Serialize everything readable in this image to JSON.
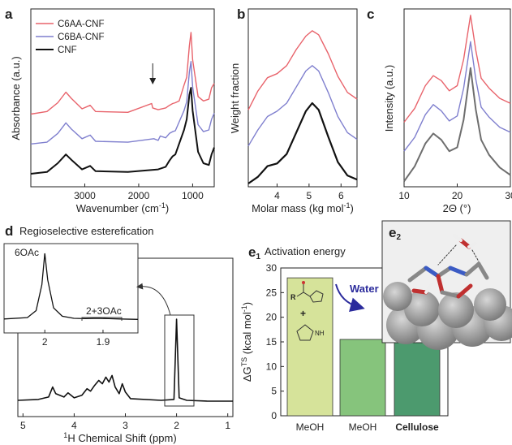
{
  "colors": {
    "red": "#e8636b",
    "blue": "#7f7fce",
    "black": "#111111",
    "gray": "#6e6e6e",
    "bar1": "#d6e39a",
    "bar2": "#86c47c",
    "bar3": "#4c9a6e",
    "arrow": "#2b2b9c"
  },
  "panels": {
    "a": {
      "letter": "a",
      "ylabel": "Absorbance (a.u.)",
      "xlabel": "Wavenumber (cm",
      "xlabel_sup": "-1",
      "xlabel_end": ")"
    },
    "b": {
      "letter": "b",
      "ylabel": "Weight fraction",
      "xlabel": "Molar mass (kg mol",
      "xlabel_sup": "-1",
      "xlabel_end": ")"
    },
    "c": {
      "letter": "c",
      "ylabel": "Intensity (a.u.)",
      "xlabel": "2Θ (°)"
    },
    "d": {
      "letter": "d",
      "title": "Regioselective esterefication",
      "xlabel_sup": "1",
      "xlabel": "H Chemical Shift (ppm)",
      "inset_label1": "6OAc",
      "inset_label2": "2+3OAc"
    },
    "e1": {
      "letter": "e",
      "sub": "1",
      "title": "Activation energy",
      "ylabel_main": "ΔG",
      "ylabel_sup": "TS",
      "ylabel_rest": " (kcal mol",
      "ylabel_sup2": "-1",
      "ylabel_end": ")",
      "water_label": "Water",
      "mol_r": "R",
      "mol_plus": "+",
      "mol_nh": "NH"
    },
    "e2": {
      "letter": "e",
      "sub": "2"
    }
  },
  "chart_data": [
    {
      "panel": "a",
      "type": "line",
      "xlabel": "Wavenumber (cm-1)",
      "ylabel": "Absorbance (a.u.)",
      "x_ticks": [
        3000,
        2000,
        1000
      ],
      "xlim": [
        4000,
        600
      ],
      "series": [
        {
          "name": "C6AA-CNF",
          "color": "#e8636b",
          "offset": 0.68,
          "points": [
            [
              4000,
              0.0
            ],
            [
              3700,
              0.03
            ],
            [
              3500,
              0.13
            ],
            [
              3350,
              0.25
            ],
            [
              3250,
              0.18
            ],
            [
              3050,
              0.06
            ],
            [
              2900,
              0.1
            ],
            [
              2800,
              0.03
            ],
            [
              2200,
              0.02
            ],
            [
              1760,
              0.12
            ],
            [
              1740,
              0.07
            ],
            [
              1640,
              0.05
            ],
            [
              1500,
              0.07
            ],
            [
              1430,
              0.1
            ],
            [
              1370,
              0.12
            ],
            [
              1320,
              0.13
            ],
            [
              1250,
              0.15
            ],
            [
              1160,
              0.33
            ],
            [
              1110,
              0.42
            ],
            [
              1060,
              0.78
            ],
            [
              1030,
              0.93
            ],
            [
              1000,
              0.62
            ],
            [
              900,
              0.2
            ],
            [
              800,
              0.15
            ],
            [
              700,
              0.17
            ],
            [
              650,
              0.3
            ],
            [
              600,
              0.35
            ]
          ]
        },
        {
          "name": "C6BA-CNF",
          "color": "#7f7fce",
          "offset": 0.34,
          "points": [
            [
              4000,
              0.0
            ],
            [
              3700,
              0.02
            ],
            [
              3500,
              0.12
            ],
            [
              3350,
              0.24
            ],
            [
              3250,
              0.17
            ],
            [
              3050,
              0.06
            ],
            [
              2900,
              0.1
            ],
            [
              2800,
              0.03
            ],
            [
              2200,
              0.02
            ],
            [
              1720,
              0.06
            ],
            [
              1640,
              0.04
            ],
            [
              1600,
              0.09
            ],
            [
              1500,
              0.07
            ],
            [
              1430,
              0.12
            ],
            [
              1370,
              0.14
            ],
            [
              1320,
              0.15
            ],
            [
              1160,
              0.38
            ],
            [
              1110,
              0.48
            ],
            [
              1060,
              0.82
            ],
            [
              1030,
              0.94
            ],
            [
              1000,
              0.65
            ],
            [
              900,
              0.22
            ],
            [
              800,
              0.14
            ],
            [
              700,
              0.16
            ],
            [
              650,
              0.28
            ],
            [
              600,
              0.35
            ]
          ]
        },
        {
          "name": "CNF",
          "color": "#111111",
          "offset": 0.0,
          "points": [
            [
              4000,
              0.0
            ],
            [
              3700,
              0.02
            ],
            [
              3500,
              0.12
            ],
            [
              3350,
              0.22
            ],
            [
              3250,
              0.16
            ],
            [
              3050,
              0.05
            ],
            [
              2900,
              0.09
            ],
            [
              2800,
              0.03
            ],
            [
              2200,
              0.02
            ],
            [
              1640,
              0.05
            ],
            [
              1500,
              0.08
            ],
            [
              1430,
              0.15
            ],
            [
              1370,
              0.2
            ],
            [
              1320,
              0.22
            ],
            [
              1160,
              0.5
            ],
            [
              1110,
              0.62
            ],
            [
              1060,
              0.9
            ],
            [
              1030,
              0.98
            ],
            [
              1000,
              0.72
            ],
            [
              900,
              0.25
            ],
            [
              800,
              0.12
            ],
            [
              700,
              0.1
            ],
            [
              650,
              0.22
            ],
            [
              600,
              0.3
            ]
          ]
        }
      ],
      "annotation": {
        "type": "arrow",
        "x": 1740
      }
    },
    {
      "panel": "b",
      "type": "line",
      "xlabel": "Molar mass (kg mol-1)",
      "ylabel": "Weight fraction",
      "x_ticks": [
        4,
        5,
        6
      ],
      "xlim": [
        3.1,
        6.5
      ],
      "series": [
        {
          "color": "#e8636b",
          "offset": 0.55,
          "points": [
            [
              3.1,
              0.0
            ],
            [
              3.4,
              0.14
            ],
            [
              3.7,
              0.24
            ],
            [
              4.0,
              0.27
            ],
            [
              4.3,
              0.33
            ],
            [
              4.6,
              0.45
            ],
            [
              4.9,
              0.55
            ],
            [
              5.1,
              0.59
            ],
            [
              5.3,
              0.56
            ],
            [
              5.6,
              0.42
            ],
            [
              5.9,
              0.25
            ],
            [
              6.2,
              0.13
            ],
            [
              6.5,
              0.08
            ]
          ]
        },
        {
          "color": "#7f7fce",
          "offset": 0.28,
          "points": [
            [
              3.1,
              0.0
            ],
            [
              3.4,
              0.12
            ],
            [
              3.7,
              0.22
            ],
            [
              4.0,
              0.26
            ],
            [
              4.3,
              0.32
            ],
            [
              4.6,
              0.44
            ],
            [
              4.9,
              0.56
            ],
            [
              5.1,
              0.6
            ],
            [
              5.3,
              0.56
            ],
            [
              5.6,
              0.4
            ],
            [
              5.9,
              0.22
            ],
            [
              6.2,
              0.1
            ],
            [
              6.5,
              0.05
            ]
          ]
        },
        {
          "color": "#111111",
          "offset": 0.0,
          "points": [
            [
              3.1,
              0.0
            ],
            [
              3.4,
              0.05
            ],
            [
              3.7,
              0.13
            ],
            [
              4.0,
              0.15
            ],
            [
              4.3,
              0.22
            ],
            [
              4.6,
              0.38
            ],
            [
              4.9,
              0.54
            ],
            [
              5.1,
              0.6
            ],
            [
              5.3,
              0.55
            ],
            [
              5.6,
              0.35
            ],
            [
              5.9,
              0.16
            ],
            [
              6.2,
              0.06
            ],
            [
              6.5,
              0.03
            ]
          ]
        }
      ]
    },
    {
      "panel": "c",
      "type": "line",
      "xlabel": "2Θ (°)",
      "ylabel": "Intensity (a.u.)",
      "x_ticks": [
        10,
        20,
        30
      ],
      "xlim": [
        10,
        30
      ],
      "series": [
        {
          "color": "#e8636b",
          "offset": 0.45,
          "points": [
            [
              10,
              0.05
            ],
            [
              12,
              0.16
            ],
            [
              14,
              0.34
            ],
            [
              15.5,
              0.42
            ],
            [
              17,
              0.38
            ],
            [
              18.5,
              0.3
            ],
            [
              20,
              0.34
            ],
            [
              21.2,
              0.55
            ],
            [
              22.5,
              0.9
            ],
            [
              23.5,
              0.62
            ],
            [
              24.5,
              0.4
            ],
            [
              26,
              0.32
            ],
            [
              28,
              0.24
            ],
            [
              30,
              0.2
            ]
          ]
        },
        {
          "color": "#7f7fce",
          "offset": 0.22,
          "points": [
            [
              10,
              0.05
            ],
            [
              12,
              0.16
            ],
            [
              14,
              0.34
            ],
            [
              15.5,
              0.42
            ],
            [
              17,
              0.37
            ],
            [
              18.5,
              0.29
            ],
            [
              20,
              0.33
            ],
            [
              21.2,
              0.55
            ],
            [
              22.5,
              0.92
            ],
            [
              23.5,
              0.62
            ],
            [
              24.5,
              0.4
            ],
            [
              26,
              0.32
            ],
            [
              28,
              0.24
            ],
            [
              30,
              0.2
            ]
          ]
        },
        {
          "color": "#6e6e6e",
          "offset": 0.0,
          "points": [
            [
              10,
              0.03
            ],
            [
              12,
              0.15
            ],
            [
              14,
              0.33
            ],
            [
              15.5,
              0.41
            ],
            [
              17,
              0.36
            ],
            [
              18.5,
              0.27
            ],
            [
              20,
              0.3
            ],
            [
              21.2,
              0.52
            ],
            [
              22.5,
              0.93
            ],
            [
              23.5,
              0.6
            ],
            [
              24.5,
              0.36
            ],
            [
              26,
              0.24
            ],
            [
              28,
              0.14
            ],
            [
              30,
              0.08
            ]
          ]
        }
      ]
    },
    {
      "panel": "d",
      "type": "line",
      "xlabel": "1H Chemical Shift (ppm)",
      "x_ticks": [
        5,
        4,
        3,
        2,
        1
      ],
      "xlim": [
        5.1,
        0.9
      ],
      "series": [
        {
          "color": "#111111",
          "points": [
            [
              5.1,
              0.02
            ],
            [
              4.7,
              0.03
            ],
            [
              4.5,
              0.06
            ],
            [
              4.42,
              0.18
            ],
            [
              4.36,
              0.1
            ],
            [
              4.2,
              0.06
            ],
            [
              4.12,
              0.11
            ],
            [
              4.0,
              0.05
            ],
            [
              3.85,
              0.08
            ],
            [
              3.75,
              0.16
            ],
            [
              3.68,
              0.13
            ],
            [
              3.6,
              0.2
            ],
            [
              3.52,
              0.26
            ],
            [
              3.45,
              0.22
            ],
            [
              3.38,
              0.3
            ],
            [
              3.32,
              0.24
            ],
            [
              3.26,
              0.32
            ],
            [
              3.2,
              0.18
            ],
            [
              3.12,
              0.1
            ],
            [
              3.06,
              0.22
            ],
            [
              3.0,
              0.12
            ],
            [
              2.9,
              0.04
            ],
            [
              2.3,
              0.02
            ],
            [
              2.05,
              0.03
            ],
            [
              2.0,
              1.0
            ],
            [
              1.95,
              0.05
            ],
            [
              1.8,
              0.02
            ],
            [
              1.4,
              0.01
            ],
            [
              0.9,
              0.01
            ]
          ]
        }
      ],
      "inset": {
        "x_ticks": [
          2,
          1.9
        ],
        "xlim": [
          2.07,
          1.84
        ],
        "points": [
          [
            2.07,
            0.06
          ],
          [
            2.03,
            0.08
          ],
          [
            2.015,
            0.18
          ],
          [
            2.005,
            0.55
          ],
          [
            2.0,
            1.0
          ],
          [
            1.995,
            0.62
          ],
          [
            1.985,
            0.22
          ],
          [
            1.97,
            0.1
          ],
          [
            1.95,
            0.07
          ],
          [
            1.93,
            0.065
          ],
          [
            1.91,
            0.07
          ],
          [
            1.89,
            0.065
          ],
          [
            1.87,
            0.06
          ],
          [
            1.84,
            0.055
          ]
        ]
      }
    },
    {
      "panel": "e1",
      "type": "bar",
      "ylabel": "ΔGTS (kcal mol-1)",
      "categories": [
        "MeOH",
        "MeOH",
        "Cellulose"
      ],
      "values": [
        28.0,
        15.5,
        15.1
      ],
      "ylim": [
        0,
        30
      ],
      "y_ticks": [
        0,
        5,
        10,
        15,
        20,
        25,
        30
      ]
    }
  ]
}
